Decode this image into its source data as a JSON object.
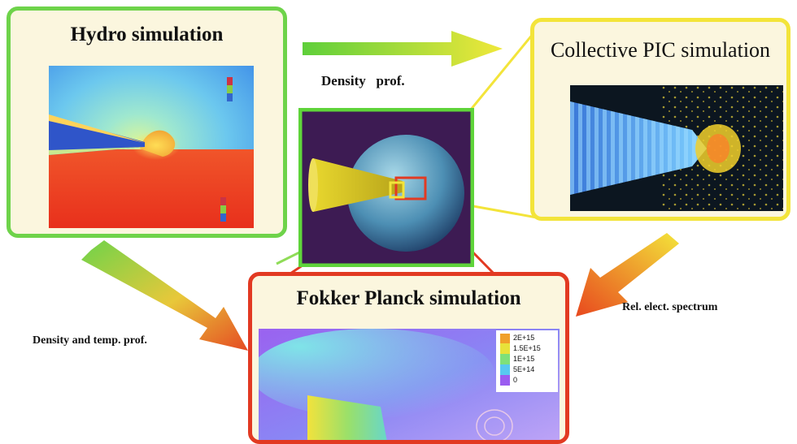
{
  "panels": {
    "hydro": {
      "title": "Hydro simulation"
    },
    "pic": {
      "title": "Collective PIC simulation"
    },
    "fokker": {
      "title": "Fokker Planck simulation",
      "legend": [
        "2E+15",
        "1.5E+15",
        "1E+15",
        "5E+14",
        "0"
      ]
    }
  },
  "captions": {
    "density_prof": "Density   prof.",
    "density_temp_prof": "Density and temp. prof.",
    "rel_elect_spectrum": "Rel. elect. spectrum"
  },
  "colors": {
    "hydro_frame": "#6ed34a",
    "pic_frame": "#f3e43a",
    "fokker_frame": "#e23a22",
    "center_frame": "#5fd43a",
    "panel_bg": "#fbf6de"
  }
}
